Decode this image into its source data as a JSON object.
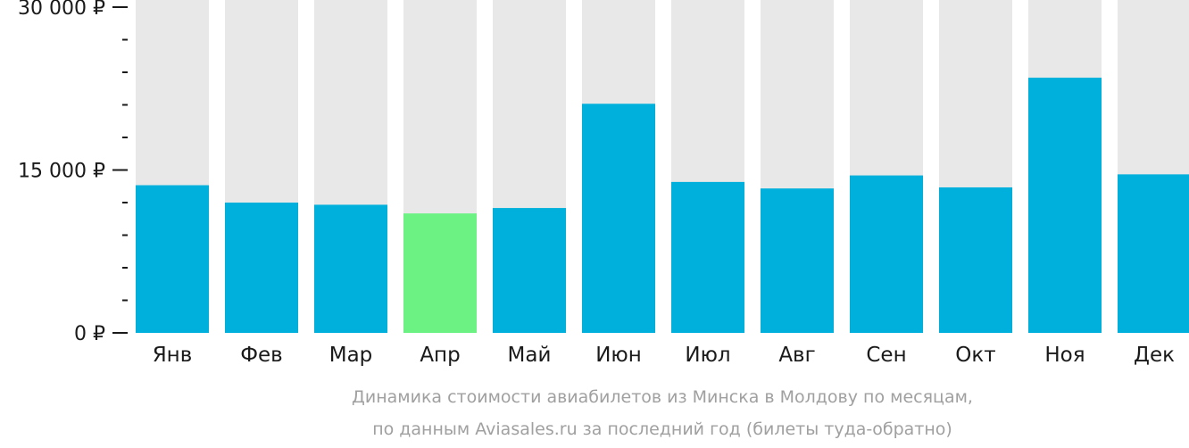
{
  "chart_data": {
    "type": "bar",
    "categories": [
      "Янв",
      "Фев",
      "Мар",
      "Апр",
      "Май",
      "Июн",
      "Июл",
      "Авг",
      "Сен",
      "Окт",
      "Ноя",
      "Дек"
    ],
    "values": [
      13600,
      12000,
      11800,
      11000,
      11500,
      21100,
      13900,
      13300,
      14500,
      13400,
      23500,
      14600
    ],
    "highlight_index": 3,
    "ylim": [
      0,
      30000
    ],
    "y_ticks": [
      {
        "value": 0,
        "label": "0 ₽"
      },
      {
        "value": 15000,
        "label": "15 000 ₽"
      },
      {
        "value": 30000,
        "label": "30 000 ₽"
      }
    ],
    "minor_tick_step": 3000,
    "colors": {
      "bar": "#00b0dc",
      "highlight": "#6cf283",
      "background_bar": "#e8e8e8"
    },
    "title": "",
    "xlabel": "",
    "ylabel": "",
    "caption_lines": [
      "Динамика стоимости авиабилетов из Минска в Молдову по месяцам,",
      "по данным Aviasales.ru за последний год (билеты туда-обратно)"
    ]
  }
}
